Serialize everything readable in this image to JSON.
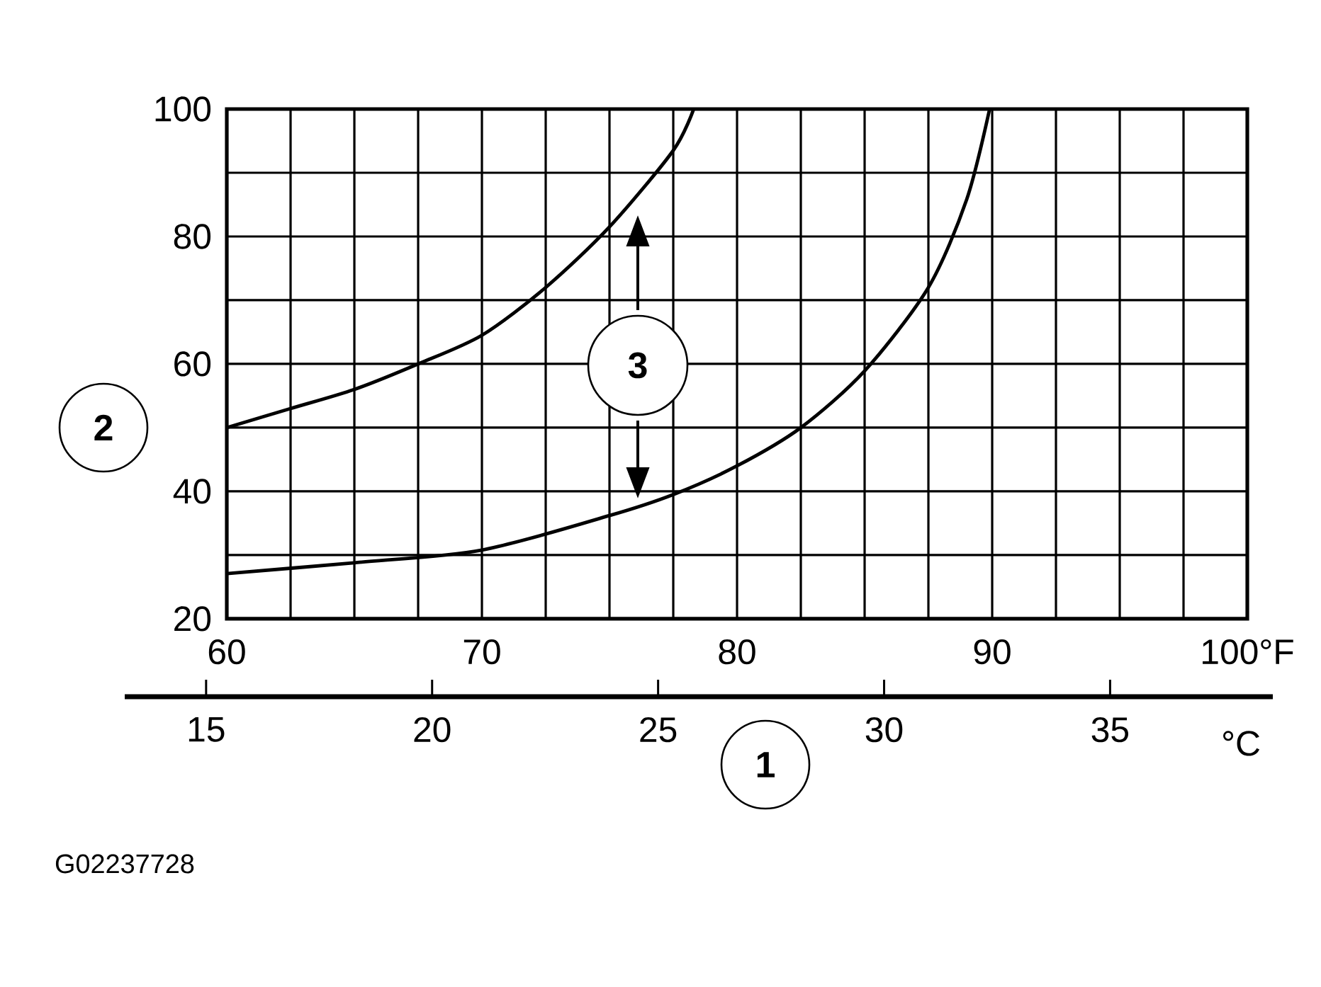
{
  "chart_data": {
    "type": "line",
    "xlabel": "1",
    "ylabel": "2",
    "xlim": [
      60,
      100
    ],
    "xticks": [
      60,
      70,
      80,
      90,
      {
        "value": 100,
        "label": "100°F"
      }
    ],
    "ylim": [
      20,
      100
    ],
    "yticks": [
      20,
      40,
      60,
      80,
      100
    ],
    "x2lim": [
      13.2,
      38.6
    ],
    "x2ticks": [
      15,
      20,
      25,
      30,
      35
    ],
    "x2label": "°C",
    "grid": true,
    "marker": "none",
    "series": [
      {
        "color": "#000000",
        "x": [
          60,
          62.5,
          65,
          67.5,
          70,
          72.5,
          75,
          77.5,
          78.3
        ],
        "values": [
          50,
          53,
          56,
          60,
          64.5,
          72,
          81.5,
          93.5,
          100
        ]
      },
      {
        "color": "#000000",
        "x": [
          60,
          65,
          70,
          75,
          77.5,
          80,
          82.5,
          85,
          87.5,
          89,
          89.9
        ],
        "values": [
          27.1,
          28.8,
          30.8,
          36.2,
          39.5,
          44,
          50,
          58.9,
          72,
          85.8,
          100
        ]
      }
    ],
    "annotations": [
      "3",
      "G02237728"
    ]
  }
}
